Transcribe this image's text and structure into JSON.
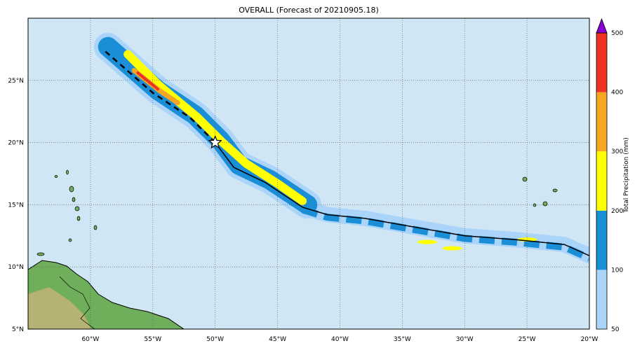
{
  "title": "OVERALL (Forecast of 20210905.18)",
  "chart_data": {
    "type": "heatmap",
    "title": "OVERALL (Forecast of 20210905.18)",
    "xlim": [
      -65,
      -20
    ],
    "ylim": [
      5,
      30
    ],
    "xticks": [
      -60,
      -55,
      -50,
      -45,
      -40,
      -35,
      -30,
      -25,
      -20
    ],
    "xtick_labels": [
      "60°W",
      "55°W",
      "50°W",
      "45°W",
      "40°W",
      "35°W",
      "30°W",
      "25°W",
      "20°W"
    ],
    "yticks": [
      5,
      10,
      15,
      20,
      25
    ],
    "ytick_labels": [
      "5°N",
      "10°N",
      "15°N",
      "20°N",
      "25°N"
    ],
    "grid": true,
    "colorbar": {
      "label": "Total Precipitation (mm)",
      "levels": [
        50,
        100,
        200,
        300,
        400,
        500
      ],
      "level_labels": [
        "50",
        "100",
        "200",
        "300",
        "400",
        "500"
      ],
      "colors": [
        "#aad4fa",
        "#1a8fd8",
        "#ffff00",
        "#f5a623",
        "#ee3322"
      ],
      "extend_color": "#8a00d4"
    },
    "ocean_color": "#d0e6f5",
    "track_past": [
      [
        -20,
        10.9
      ],
      [
        -22,
        11.8
      ],
      [
        -26,
        12.2
      ],
      [
        -30,
        12.5
      ],
      [
        -34,
        13.2
      ],
      [
        -38,
        13.9
      ],
      [
        -41,
        14.2
      ],
      [
        -43,
        14.8
      ],
      [
        -46,
        16.8
      ],
      [
        -48.5,
        18
      ],
      [
        -50,
        20
      ]
    ],
    "track_forecast": [
      [
        -50,
        20
      ],
      [
        -52,
        22
      ],
      [
        -55,
        24
      ],
      [
        -59,
        27.5
      ]
    ],
    "current_position": [
      -50,
      20
    ]
  }
}
